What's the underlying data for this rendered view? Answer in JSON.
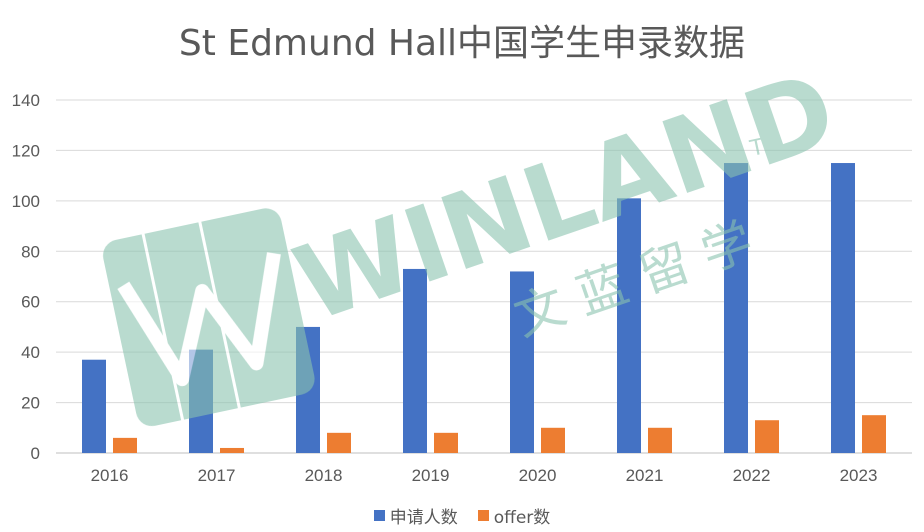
{
  "chart_data": {
    "type": "bar",
    "title": "St Edmund Hall中国学生申录数据",
    "categories": [
      "2016",
      "2017",
      "2018",
      "2019",
      "2020",
      "2021",
      "2022",
      "2023"
    ],
    "series": [
      {
        "name": "申请人数",
        "color": "#4472C4",
        "values": [
          37,
          41,
          50,
          73,
          72,
          101,
          115,
          115
        ]
      },
      {
        "name": "offer数",
        "color": "#ED7D31",
        "values": [
          6,
          2,
          8,
          8,
          10,
          10,
          13,
          15
        ]
      }
    ],
    "ylim": [
      0,
      140
    ],
    "yticks": [
      0,
      20,
      40,
      60,
      80,
      100,
      120,
      140
    ],
    "grid": true,
    "legend_position": "bottom"
  },
  "watermark": {
    "brand": "WINLAND",
    "trademark": "TM",
    "chinese": "文 蓝 留 学",
    "color": "#8BC4B0"
  }
}
